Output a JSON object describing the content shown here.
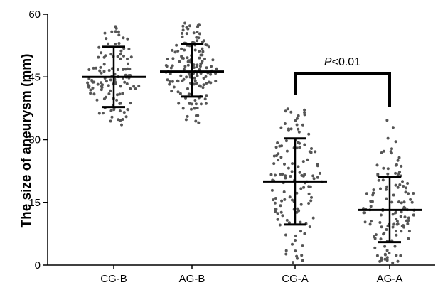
{
  "chart_data": {
    "type": "scatter",
    "subtype": "dot-plot with mean and standard deviation bars",
    "ylabel": "The size of aneurysm (mm)",
    "xlabel": "",
    "ylim": [
      0,
      60
    ],
    "yticks": [
      "0",
      "15",
      "30",
      "45",
      "60"
    ],
    "ytick_values": [
      0,
      15,
      30,
      45,
      60
    ],
    "categories": [
      "CG-B",
      "AG-B",
      "CG-A",
      "AG-A"
    ],
    "groups": [
      {
        "name": "CG-B",
        "mean": 45,
        "sd_low": 37.8,
        "sd_high": 52.2,
        "min": 33.5,
        "max": 57.5,
        "n": 120
      },
      {
        "name": "AG-B",
        "mean": 46.3,
        "sd_low": 40.3,
        "sd_high": 52.8,
        "min": 34,
        "max": 58,
        "n": 150
      },
      {
        "name": "CG-A",
        "mean": 20,
        "sd_low": 9.7,
        "sd_high": 30.3,
        "min": 0.5,
        "max": 37.5,
        "n": 130
      },
      {
        "name": "AG-A",
        "mean": 13.2,
        "sd_low": 5.5,
        "sd_high": 21,
        "min": 0.5,
        "max": 35,
        "n": 130
      }
    ],
    "annotation": {
      "text_italic": "P",
      "text_rest": "<0.01",
      "between": [
        "CG-A",
        "AG-A"
      ]
    },
    "colors": {
      "points": "#555555",
      "bars": "#000000",
      "axes": "#000000"
    },
    "grid": false,
    "legend": "none"
  }
}
